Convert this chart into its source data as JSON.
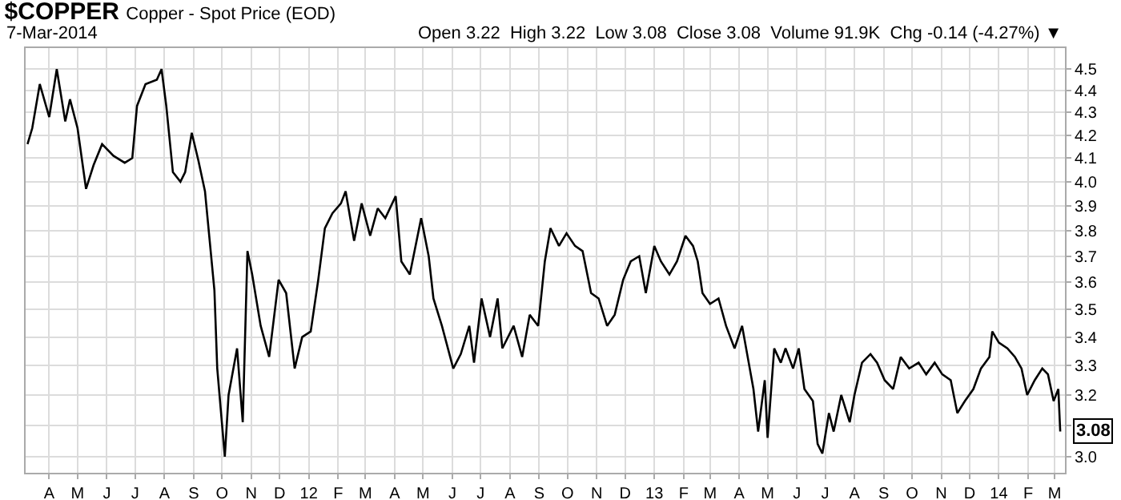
{
  "chart_data": {
    "type": "line",
    "title": "$COPPER",
    "subtitle": "Copper - Spot Price (EOD)",
    "annotations": [
      "7-Mar-2014",
      "Open 3.22  High 3.22  Low 3.08  Close 3.08  Volume 91.9K  Chg -0.14 (-4.27%) ▼",
      {
        "text": "3.08",
        "x": "2014-03-07",
        "y": 3.08
      }
    ],
    "x": [
      "2011-03-09",
      "2011-03-14",
      "2011-03-22",
      "2011-04-01",
      "2011-04-09",
      "2011-04-18",
      "2011-04-23",
      "2011-05-01",
      "2011-05-10",
      "2011-05-18",
      "2011-05-27",
      "2011-06-08",
      "2011-06-20",
      "2011-06-28",
      "2011-07-03",
      "2011-07-12",
      "2011-07-24",
      "2011-07-29",
      "2011-08-03",
      "2011-08-10",
      "2011-08-18",
      "2011-08-23",
      "2011-08-30",
      "2011-09-06",
      "2011-09-13",
      "2011-09-18",
      "2011-09-23",
      "2011-09-26",
      "2011-10-04",
      "2011-10-08",
      "2011-10-17",
      "2011-10-23",
      "2011-10-28",
      "2011-11-02",
      "2011-11-11",
      "2011-11-20",
      "2011-11-30",
      "2011-12-08",
      "2011-12-17",
      "2011-12-25",
      "2012-01-03",
      "2012-01-11",
      "2012-01-18",
      "2012-01-26",
      "2012-02-04",
      "2012-02-09",
      "2012-02-18",
      "2012-02-26",
      "2012-03-06",
      "2012-03-14",
      "2012-03-22",
      "2012-04-02",
      "2012-04-08",
      "2012-04-17",
      "2012-04-29",
      "2012-05-07",
      "2012-05-12",
      "2012-05-21",
      "2012-06-02",
      "2012-06-10",
      "2012-06-19",
      "2012-06-24",
      "2012-07-02",
      "2012-07-11",
      "2012-07-19",
      "2012-07-24",
      "2012-08-05",
      "2012-08-14",
      "2012-08-22",
      "2012-08-31",
      "2012-09-07",
      "2012-09-13",
      "2012-09-22",
      "2012-09-30",
      "2012-10-09",
      "2012-10-17",
      "2012-10-26",
      "2012-11-03",
      "2012-11-12",
      "2012-11-20",
      "2012-11-29",
      "2012-12-07",
      "2012-12-16",
      "2012-12-23",
      "2013-01-01",
      "2013-01-08",
      "2013-01-17",
      "2013-01-25",
      "2013-02-03",
      "2013-02-11",
      "2013-02-16",
      "2013-02-21",
      "2013-03-01",
      "2013-03-10",
      "2013-03-18",
      "2013-03-27",
      "2013-04-04",
      "2013-04-11",
      "2013-04-16",
      "2013-04-21",
      "2013-04-28",
      "2013-05-01",
      "2013-05-08",
      "2013-05-15",
      "2013-05-20",
      "2013-05-28",
      "2013-06-03",
      "2013-06-09",
      "2013-06-18",
      "2013-06-23",
      "2013-06-28",
      "2013-07-05",
      "2013-07-10",
      "2013-07-18",
      "2013-07-27",
      "2013-08-01",
      "2013-08-09",
      "2013-08-18",
      "2013-08-25",
      "2013-09-02",
      "2013-09-11",
      "2013-09-19",
      "2013-09-28",
      "2013-10-08",
      "2013-10-16",
      "2013-10-25",
      "2013-11-02",
      "2013-11-11",
      "2013-11-18",
      "2013-11-26",
      "2013-12-05",
      "2013-12-13",
      "2013-12-22",
      "2013-12-25",
      "2014-01-01",
      "2014-01-10",
      "2014-01-18",
      "2014-01-25",
      "2014-01-31",
      "2014-02-08",
      "2014-02-16",
      "2014-02-22",
      "2014-02-28",
      "2014-03-05",
      "2014-03-07"
    ],
    "values": [
      4.16,
      4.23,
      4.43,
      4.28,
      4.5,
      4.26,
      4.36,
      4.23,
      3.97,
      4.07,
      4.16,
      4.11,
      4.08,
      4.1,
      4.33,
      4.43,
      4.45,
      4.5,
      4.33,
      4.04,
      4.0,
      4.04,
      4.21,
      4.09,
      3.96,
      3.76,
      3.57,
      3.29,
      3.0,
      3.2,
      3.36,
      3.11,
      3.72,
      3.63,
      3.44,
      3.33,
      3.61,
      3.56,
      3.29,
      3.4,
      3.42,
      3.61,
      3.81,
      3.87,
      3.91,
      3.96,
      3.76,
      3.91,
      3.78,
      3.89,
      3.85,
      3.94,
      3.68,
      3.63,
      3.85,
      3.7,
      3.54,
      3.44,
      3.29,
      3.34,
      3.44,
      3.31,
      3.54,
      3.4,
      3.54,
      3.36,
      3.44,
      3.33,
      3.48,
      3.44,
      3.68,
      3.81,
      3.74,
      3.79,
      3.74,
      3.72,
      3.56,
      3.54,
      3.44,
      3.48,
      3.61,
      3.68,
      3.7,
      3.56,
      3.74,
      3.68,
      3.63,
      3.68,
      3.78,
      3.74,
      3.68,
      3.56,
      3.52,
      3.54,
      3.44,
      3.36,
      3.44,
      3.31,
      3.22,
      3.08,
      3.25,
      3.06,
      3.36,
      3.31,
      3.36,
      3.29,
      3.36,
      3.22,
      3.18,
      3.04,
      3.01,
      3.14,
      3.08,
      3.2,
      3.11,
      3.2,
      3.31,
      3.34,
      3.31,
      3.25,
      3.22,
      3.33,
      3.29,
      3.31,
      3.27,
      3.31,
      3.27,
      3.25,
      3.14,
      3.18,
      3.22,
      3.29,
      3.33,
      3.42,
      3.38,
      3.36,
      3.33,
      3.29,
      3.2,
      3.25,
      3.29,
      3.27,
      3.18,
      3.22,
      3.08
    ],
    "color": "#000000",
    "log": "y",
    "grid": true,
    "xlim": [
      "2011-03-07",
      "2014-03-12"
    ],
    "xticks": [
      {
        "value": "2011-04-01",
        "label": "A"
      },
      {
        "value": "2011-05-01",
        "label": "M"
      },
      {
        "value": "2011-06-01",
        "label": "J"
      },
      {
        "value": "2011-07-01",
        "label": "J"
      },
      {
        "value": "2011-08-01",
        "label": "A"
      },
      {
        "value": "2011-09-01",
        "label": "S"
      },
      {
        "value": "2011-10-01",
        "label": "O"
      },
      {
        "value": "2011-11-01",
        "label": "N"
      },
      {
        "value": "2011-12-01",
        "label": "D"
      },
      {
        "value": "2012-01-01",
        "label": "12"
      },
      {
        "value": "2012-02-01",
        "label": "F"
      },
      {
        "value": "2012-03-01",
        "label": "M"
      },
      {
        "value": "2012-04-01",
        "label": "A"
      },
      {
        "value": "2012-05-01",
        "label": "M"
      },
      {
        "value": "2012-06-01",
        "label": "J"
      },
      {
        "value": "2012-07-01",
        "label": "J"
      },
      {
        "value": "2012-08-01",
        "label": "A"
      },
      {
        "value": "2012-09-01",
        "label": "S"
      },
      {
        "value": "2012-10-01",
        "label": "O"
      },
      {
        "value": "2012-11-01",
        "label": "N"
      },
      {
        "value": "2012-12-01",
        "label": "D"
      },
      {
        "value": "2013-01-01",
        "label": "13"
      },
      {
        "value": "2013-02-01",
        "label": "F"
      },
      {
        "value": "2013-03-01",
        "label": "M"
      },
      {
        "value": "2013-04-01",
        "label": "A"
      },
      {
        "value": "2013-05-01",
        "label": "M"
      },
      {
        "value": "2013-06-01",
        "label": "J"
      },
      {
        "value": "2013-07-01",
        "label": "J"
      },
      {
        "value": "2013-08-01",
        "label": "A"
      },
      {
        "value": "2013-09-01",
        "label": "S"
      },
      {
        "value": "2013-10-01",
        "label": "O"
      },
      {
        "value": "2013-11-01",
        "label": "N"
      },
      {
        "value": "2013-12-01",
        "label": "D"
      },
      {
        "value": "2014-01-01",
        "label": "14"
      },
      {
        "value": "2014-02-01",
        "label": "F"
      },
      {
        "value": "2014-03-01",
        "label": "M"
      }
    ],
    "ylim": [
      2.95,
      4.6
    ],
    "yticks": [
      {
        "value": 3,
        "label": "3.0"
      },
      {
        "value": 3.1,
        "label": null
      },
      3.2,
      3.3,
      3.4,
      3.5,
      3.6,
      3.7,
      3.8,
      3.9,
      {
        "value": 4,
        "label": "4.0"
      },
      4.1,
      4.2,
      4.3,
      4.4,
      4.5
    ]
  }
}
